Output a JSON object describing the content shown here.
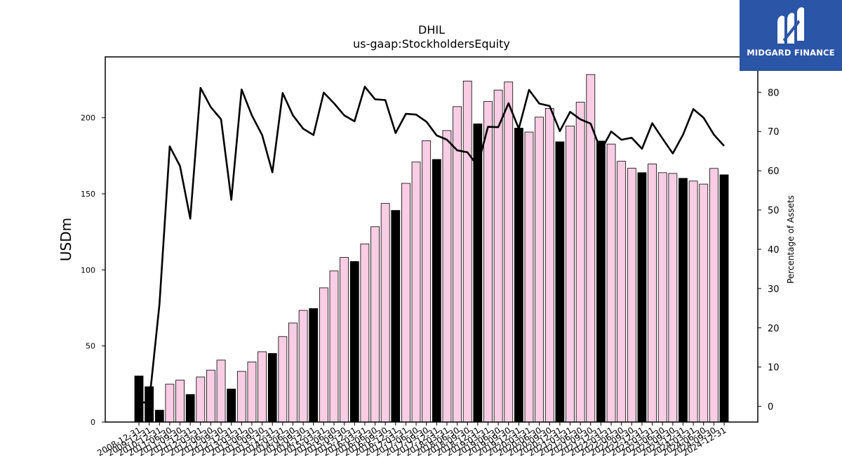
{
  "chart_data": {
    "type": "bar",
    "title": "DHIL",
    "subtitle": "us-gaap:StockholdersEquity",
    "ylabel": "USDm",
    "y2label": "Percentage of Assets",
    "ylim": [
      0,
      240
    ],
    "y2lim": [
      -4,
      89
    ],
    "yticks": [
      0,
      50,
      100,
      150,
      200
    ],
    "y2ticks": [
      0,
      10,
      20,
      30,
      40,
      50,
      60,
      70,
      80
    ],
    "categories": [
      "2008-12-31",
      "2009-12-31",
      "2010-12-31",
      "2011-06-30",
      "2011-09-30",
      "2011-12-31",
      "2012-03-31",
      "2012-06-30",
      "2012-09-30",
      "2012-12-31",
      "2013-03-31",
      "2013-06-30",
      "2013-09-30",
      "2013-12-31",
      "2014-03-31",
      "2014-06-30",
      "2014-09-30",
      "2014-12-31",
      "2015-03-31",
      "2015-06-30",
      "2015-09-30",
      "2015-12-31",
      "2016-03-31",
      "2016-06-30",
      "2016-09-30",
      "2016-12-31",
      "2017-03-31",
      "2017-06-30",
      "2017-09-30",
      "2017-12-31",
      "2018-03-31",
      "2018-06-30",
      "2018-09-30",
      "2018-12-31",
      "2019-03-31",
      "2019-06-30",
      "2019-09-30",
      "2019-12-31",
      "2020-03-31",
      "2020-06-30",
      "2020-09-30",
      "2020-12-31",
      "2021-03-31",
      "2021-06-30",
      "2021-09-30",
      "2021-12-31",
      "2022-03-31",
      "2022-06-30",
      "2022-09-30",
      "2022-12-31",
      "2023-03-31",
      "2023-06-30",
      "2023-09-30",
      "2023-12-31",
      "2024-03-31",
      "2024-06-30",
      "2024-09-30",
      "2024-12-31"
    ],
    "series": [
      {
        "kind": "bar",
        "values": [
          30.3,
          23.2,
          7.8,
          24.9,
          27.6,
          18.1,
          29.6,
          34.1,
          40.7,
          21.7,
          33.3,
          39.5,
          46.2,
          45.1,
          56.2,
          65.1,
          73.4,
          74.6,
          88.2,
          99.3,
          108.2,
          105.5,
          117.1,
          128.4,
          143.7,
          139.1,
          156.9,
          170.9,
          184.9,
          172.6,
          191.6,
          207.3,
          224.1,
          196.0,
          210.7,
          218.2,
          223.5,
          193.2,
          190.6,
          200.4,
          206.1,
          184.2,
          194.6,
          210.2,
          228.4,
          184.7,
          182.7,
          171.4,
          166.8,
          163.9,
          169.6,
          163.9,
          163.4,
          160.2,
          158.4,
          156.4,
          166.7,
          162.5
        ],
        "is_annual": [
          true,
          true,
          true,
          false,
          false,
          true,
          false,
          false,
          false,
          true,
          false,
          false,
          false,
          true,
          false,
          false,
          false,
          true,
          false,
          false,
          false,
          true,
          false,
          false,
          false,
          true,
          false,
          false,
          false,
          true,
          false,
          false,
          false,
          true,
          false,
          false,
          false,
          true,
          false,
          false,
          false,
          true,
          false,
          false,
          false,
          true,
          false,
          false,
          false,
          true,
          false,
          false,
          false,
          true,
          false,
          false,
          false,
          true
        ],
        "annual_color": "#000000",
        "quarter_color": "#f9cde4"
      },
      {
        "kind": "line",
        "axis": "right",
        "color": "#000000",
        "values": [
          1.0,
          1.0,
          26.0,
          66.2,
          61.2,
          47.8,
          81.1,
          76.2,
          73.1,
          52.6,
          80.7,
          74.1,
          69.1,
          59.6,
          79.8,
          74.1,
          70.7,
          69.1,
          79.9,
          77.2,
          74.1,
          72.6,
          81.4,
          78.2,
          78.0,
          69.6,
          74.5,
          74.3,
          72.5,
          69.0,
          67.9,
          65.2,
          64.7,
          61.2,
          71.2,
          71.1,
          77.2,
          70.7,
          80.6,
          77.1,
          76.5,
          70.1,
          75.0,
          73.1,
          72.0,
          65.1,
          70.0,
          67.9,
          68.4,
          65.6,
          72.1,
          68.2,
          64.4,
          69.2,
          75.7,
          73.5,
          69.2,
          66.3
        ]
      }
    ]
  },
  "logo": {
    "text": "MIDGARD FINANCE"
  }
}
